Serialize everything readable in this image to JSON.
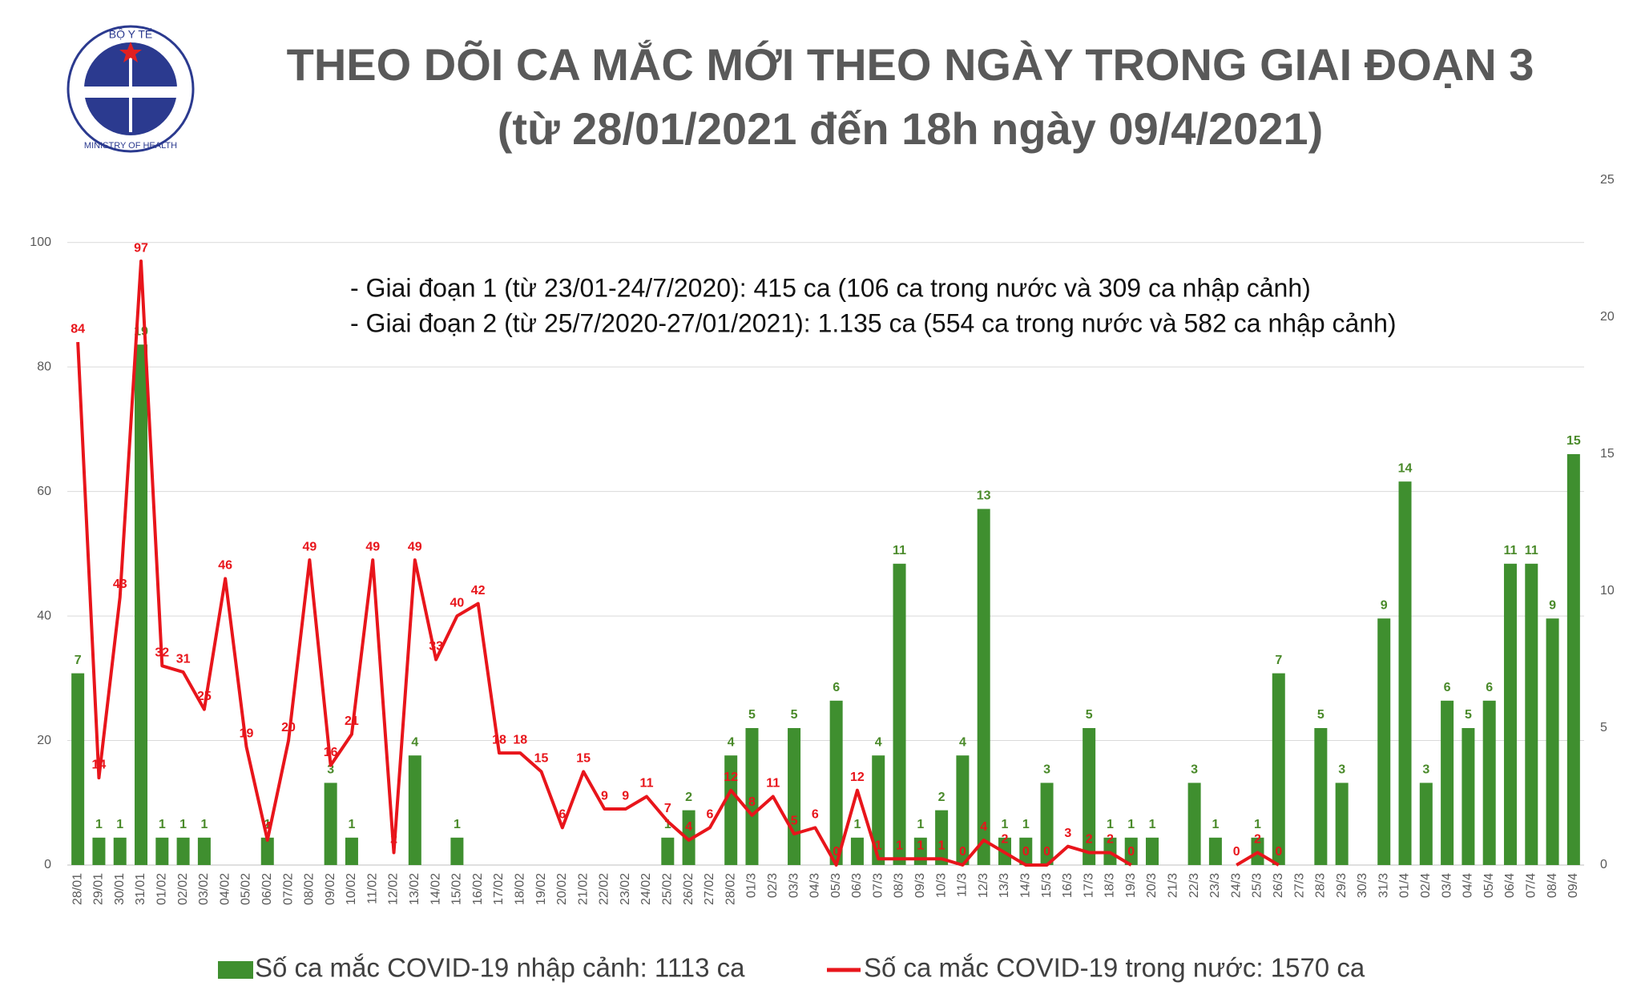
{
  "logo": {
    "top": "BỘ Y TẾ",
    "bottom": "MINISTRY OF HEALTH"
  },
  "chart_data": {
    "type": "combo",
    "title": "THEO DÕI CA MẮC MỚI THEO NGÀY TRONG GIAI ĐOẠN 3",
    "subtitle": "(từ 28/01/2021 đến 18h ngày 09/4/2021)",
    "annotations": [
      "- Giai đoạn 1 (từ 23/01-24/7/2020): 415 ca (106 ca trong nước và 309 ca nhập cảnh)",
      "- Giai đoạn 2 (từ 25/7/2020-27/01/2021): 1.135 ca (554 ca trong nước và 582 ca nhập cảnh)"
    ],
    "categories": [
      "28/01",
      "29/01",
      "30/01",
      "31/01",
      "01/02",
      "02/02",
      "03/02",
      "04/02",
      "05/02",
      "06/02",
      "07/02",
      "08/02",
      "09/02",
      "10/02",
      "11/02",
      "12/02",
      "13/02",
      "14/02",
      "15/02",
      "16/02",
      "17/02",
      "18/02",
      "19/02",
      "20/02",
      "21/02",
      "22/02",
      "23/02",
      "24/02",
      "25/02",
      "26/02",
      "27/02",
      "28/02",
      "01/3",
      "02/3",
      "03/3",
      "04/3",
      "05/3",
      "06/3",
      "07/3",
      "08/3",
      "09/3",
      "10/3",
      "11/3",
      "12/3",
      "13/3",
      "14/3",
      "15/3",
      "16/3",
      "17/3",
      "18/3",
      "19/3",
      "20/3",
      "21/3",
      "22/3",
      "23/3",
      "24/3",
      "25/3",
      "26/3",
      "27/3",
      "28/3",
      "29/3",
      "30/3",
      "31/3",
      "01/4",
      "02/4",
      "03/4",
      "04/4",
      "05/4",
      "06/4",
      "07/4",
      "08/4",
      "09/4"
    ],
    "series": [
      {
        "name": "Số ca mắc COVID-19 nhập cảnh: 1113 ca",
        "type": "bar",
        "axis": "y2",
        "color": "#3f8f2f",
        "values": [
          7,
          1,
          1,
          19,
          1,
          1,
          1,
          null,
          null,
          1,
          null,
          null,
          3,
          1,
          null,
          null,
          4,
          null,
          1,
          null,
          null,
          null,
          null,
          null,
          null,
          null,
          null,
          null,
          1,
          2,
          null,
          4,
          5,
          null,
          5,
          null,
          6,
          1,
          4,
          11,
          1,
          2,
          4,
          13,
          1,
          1,
          3,
          null,
          5,
          1,
          1,
          1,
          null,
          3,
          1,
          null,
          1,
          7,
          null,
          5,
          3,
          null,
          9,
          14,
          3,
          6,
          5,
          6,
          11,
          11,
          9,
          15
        ]
      },
      {
        "name": "Số ca mắc COVID-19 trong nước: 1570 ca",
        "type": "line",
        "color": "#e8151b",
        "values": [
          84,
          14,
          43,
          97,
          32,
          31,
          25,
          46,
          19,
          4,
          20,
          49,
          16,
          21,
          49,
          2,
          49,
          33,
          40,
          42,
          18,
          18,
          15,
          6,
          15,
          9,
          9,
          11,
          7,
          4,
          6,
          12,
          8,
          11,
          5,
          6,
          0,
          12,
          1,
          1,
          1,
          1,
          0,
          4,
          2,
          0,
          0,
          3,
          2,
          2,
          0,
          null,
          null,
          null,
          null,
          0,
          2,
          0,
          null,
          null,
          null,
          null,
          null,
          null,
          null,
          null,
          null,
          null,
          null,
          null,
          null,
          null
        ]
      }
    ],
    "ylim": [
      0,
      110
    ],
    "yticks": [
      0,
      20,
      40,
      60,
      80,
      100
    ],
    "y2lim": [
      0,
      25
    ],
    "y2ticks": [
      0,
      5,
      10,
      15,
      20,
      25
    ],
    "grid": true
  }
}
